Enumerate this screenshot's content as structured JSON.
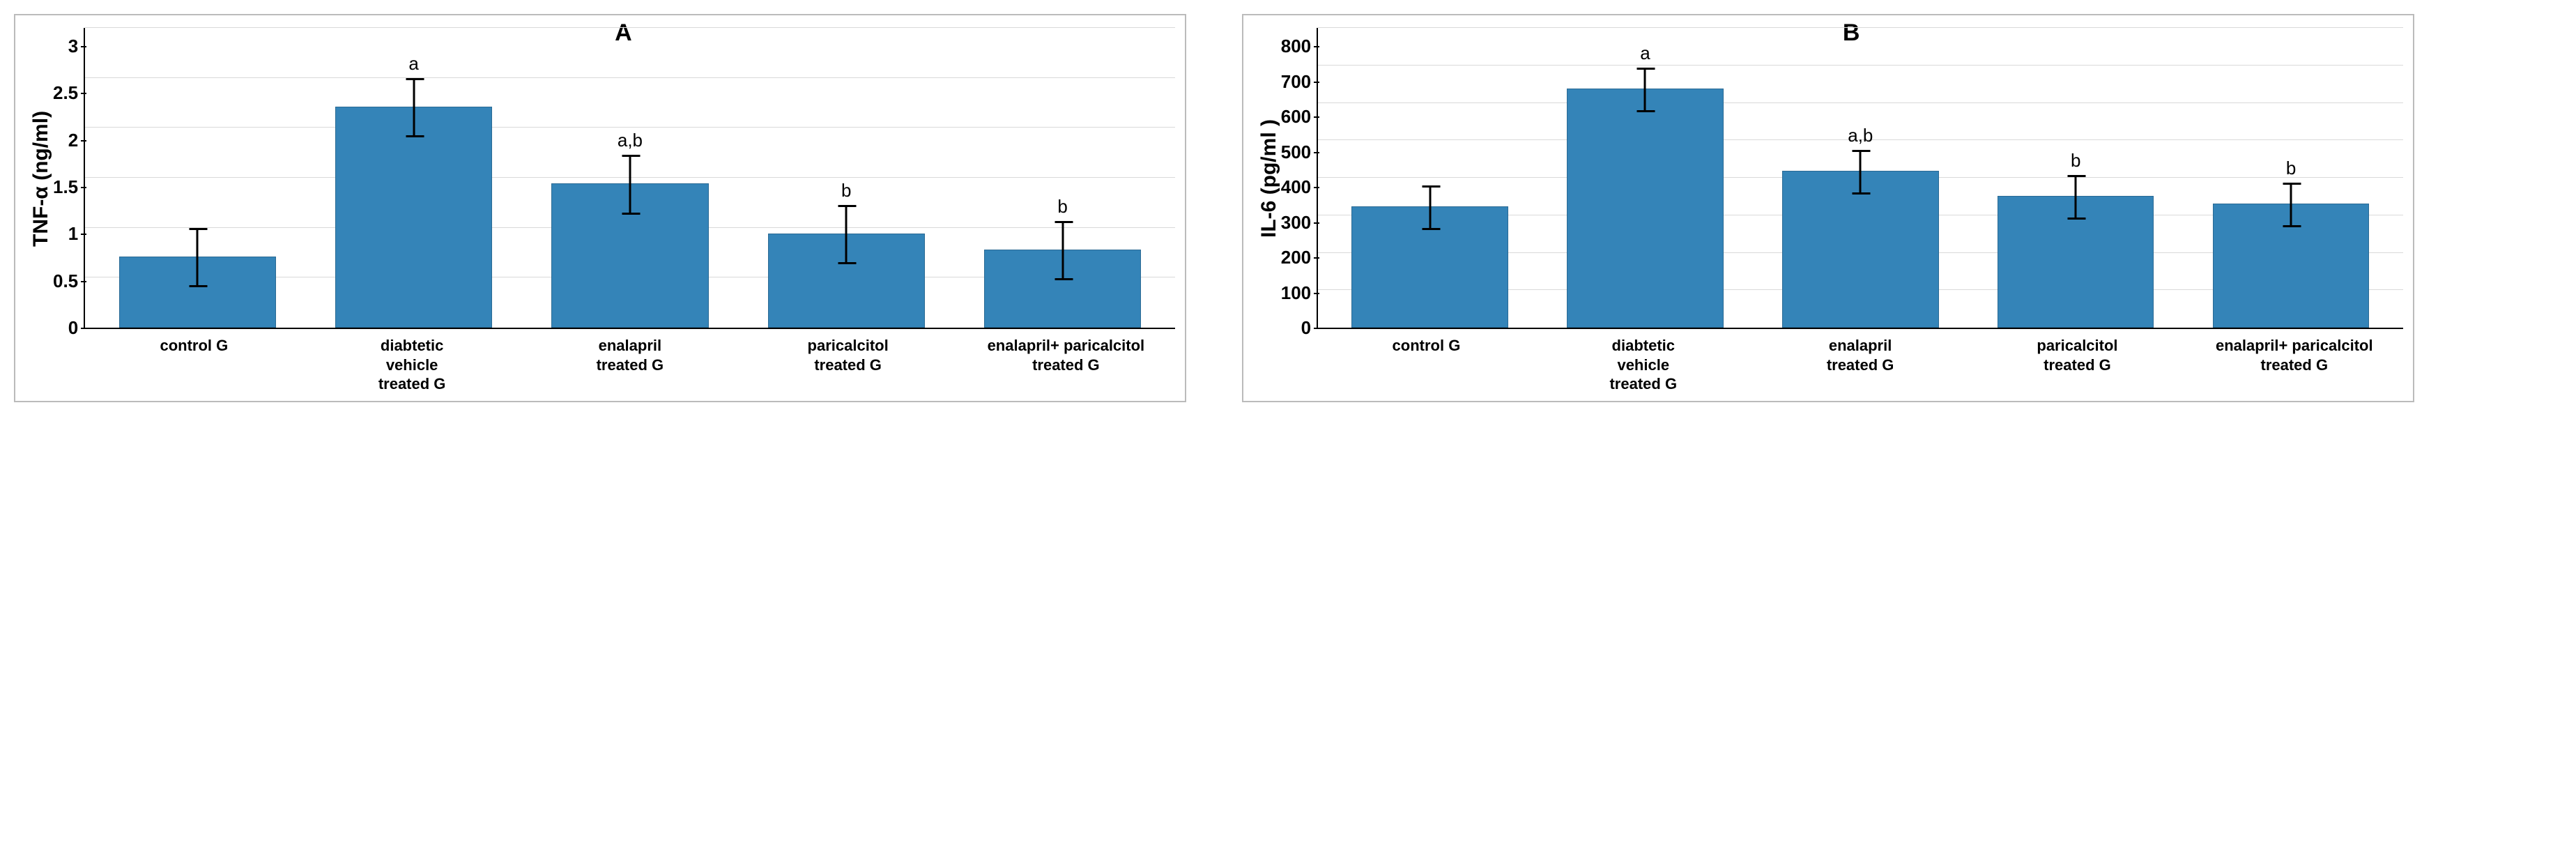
{
  "panels": [
    {
      "id": "A",
      "type": "bar",
      "ylabel": "TNF-α  (ng/ml)",
      "ylim": [
        0,
        3
      ],
      "ytick_step": 0.5,
      "yticks": [
        "0",
        "0.5",
        "1",
        "1.5",
        "2",
        "2.5",
        "3"
      ],
      "categories": [
        "control G",
        "diabtetic vehicle treated G",
        "enalapril treated G",
        "paricalcitol treated G",
        "enalapril+ paricalcitol treated G"
      ],
      "values": [
        0.7,
        2.2,
        1.43,
        0.93,
        0.77
      ],
      "errors": [
        0.29,
        0.29,
        0.29,
        0.29,
        0.29
      ],
      "sig_labels": [
        "",
        "a",
        "a,b",
        "b",
        "b"
      ],
      "bar_color": "#3484b8",
      "bar_border": "#2a6a94",
      "grid_color": "#d9d9d9",
      "error_color": "#000000",
      "background_color": "#ffffff",
      "bar_width": 0.72,
      "title_fontsize": 34,
      "label_fontsize": 30,
      "tick_fontsize": 26,
      "cat_fontsize": 22
    },
    {
      "id": "B",
      "type": "bar",
      "ylabel": "IL-6 (pg/ml )",
      "ylim": [
        0,
        800
      ],
      "ytick_step": 100,
      "yticks": [
        "0",
        "100",
        "200",
        "300",
        "400",
        "500",
        "600",
        "700",
        "800"
      ],
      "categories": [
        "control G",
        "diabtetic vehicle treated G",
        "enalapril treated G",
        "paricalcitol treated G",
        "enalapril+ paricalcitol treated G"
      ],
      "values": [
        320,
        635,
        415,
        348,
        328
      ],
      "errors": [
        58,
        58,
        58,
        58,
        58
      ],
      "sig_labels": [
        "",
        "a",
        "a,b",
        "b",
        "b"
      ],
      "bar_color": "#3484b8",
      "bar_border": "#2a6a94",
      "grid_color": "#d9d9d9",
      "error_color": "#000000",
      "background_color": "#ffffff",
      "bar_width": 0.72,
      "title_fontsize": 34,
      "label_fontsize": 30,
      "tick_fontsize": 26,
      "cat_fontsize": 22
    }
  ]
}
